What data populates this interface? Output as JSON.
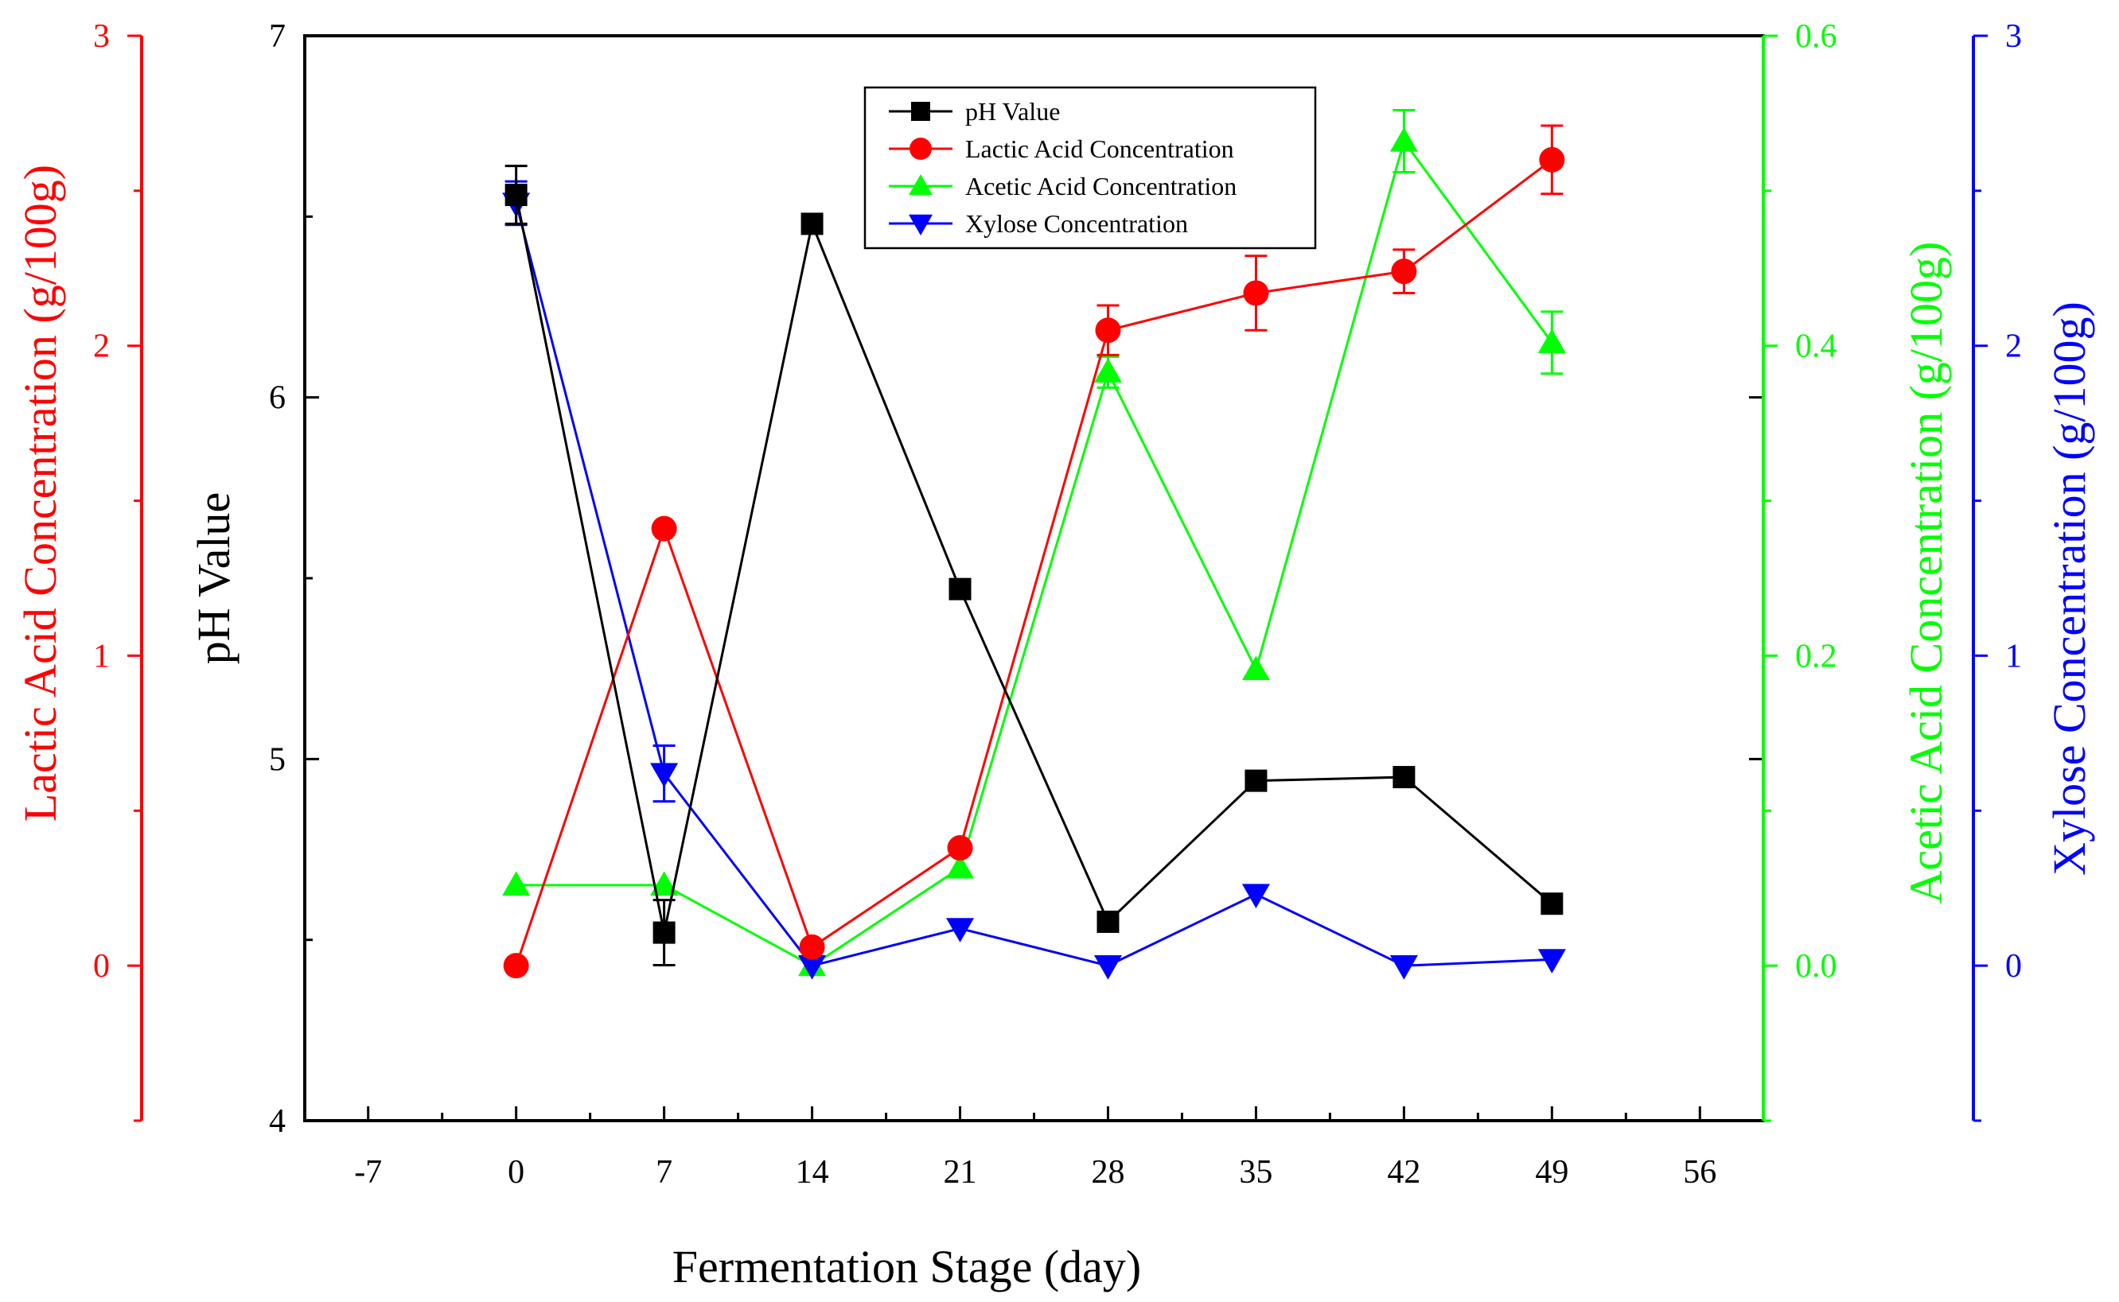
{
  "chart_data": {
    "type": "line",
    "x": [
      0,
      7,
      14,
      21,
      28,
      35,
      42,
      49
    ],
    "xlabel": "Fermentation Stage (day)",
    "xlim": [
      -10,
      59
    ],
    "xticks": [
      -7,
      0,
      7,
      14,
      21,
      28,
      35,
      42,
      49,
      56
    ],
    "xtick_labels": [
      "-7",
      "0",
      "7",
      "14",
      "21",
      "28",
      "35",
      "42",
      "49",
      "56"
    ],
    "legend_position": "top-center",
    "series": [
      {
        "name": "pH Value",
        "axis": "ph",
        "color": "#000000",
        "marker": "square",
        "values": [
          6.56,
          4.52,
          6.48,
          5.47,
          4.55,
          4.94,
          4.95,
          4.6
        ],
        "errors": [
          0.08,
          0.09,
          0,
          0,
          0,
          0,
          0,
          0
        ]
      },
      {
        "name": "Lactic Acid Concentration",
        "axis": "lactic",
        "color": "#ff0000",
        "marker": "circle",
        "values": [
          0.0,
          1.41,
          0.06,
          0.38,
          2.05,
          2.17,
          2.24,
          2.6
        ],
        "errors": [
          0,
          0,
          0,
          0,
          0.08,
          0.12,
          0.07,
          0.11
        ]
      },
      {
        "name": "Acetic Acid Concentration",
        "axis": "acetic",
        "color": "#00ff00",
        "marker": "triangle-up",
        "values": [
          0.052,
          0.052,
          0.0,
          0.063,
          0.383,
          0.191,
          0.532,
          0.402
        ],
        "errors": [
          0,
          0,
          0,
          0,
          0.01,
          0,
          0.02,
          0.02
        ]
      },
      {
        "name": "Xylose Concentration",
        "axis": "xylose",
        "color": "#0000ff",
        "marker": "triangle-down",
        "values": [
          2.46,
          0.62,
          0.0,
          0.12,
          0.0,
          0.23,
          0.0,
          0.02
        ],
        "errors": [
          0.07,
          0.09,
          0,
          0,
          0,
          0,
          0,
          0
        ]
      }
    ],
    "axes": {
      "ph": {
        "label": "pH Value",
        "color": "#000000",
        "ylim": [
          4,
          7
        ],
        "ticks": [
          4,
          5,
          6,
          7
        ],
        "tick_labels": [
          "4",
          "5",
          "6",
          "7"
        ]
      },
      "lactic": {
        "label": "Lactic Acid Concentration (g/100g)",
        "color": "#ff0000",
        "ylim": [
          -0.5,
          3
        ],
        "ticks": [
          0,
          1,
          2,
          3
        ],
        "tick_labels": [
          "0",
          "1",
          "2",
          "3"
        ]
      },
      "acetic": {
        "label": "Acetic Acid Concentration (g/100g)",
        "color": "#00ff00",
        "ylim": [
          -0.1,
          0.6
        ],
        "ticks": [
          0.0,
          0.2,
          0.4,
          0.6
        ],
        "tick_labels": [
          "0.0",
          "0.2",
          "0.4",
          "0.6"
        ]
      },
      "xylose": {
        "label": "Xylose Concentration (g/100g)",
        "color": "#0000ff",
        "ylim": [
          -0.5,
          3
        ],
        "ticks": [
          0,
          1,
          2,
          3
        ],
        "tick_labels": [
          "0",
          "1",
          "2",
          "3"
        ]
      }
    }
  }
}
